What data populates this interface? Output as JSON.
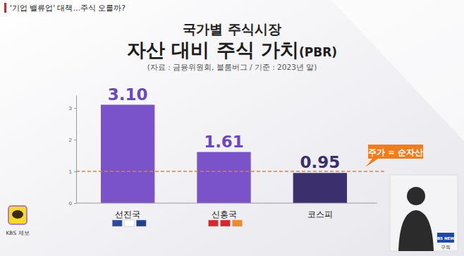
{
  "banner": "'기업 밸류업' 대책…주식 오를까?",
  "kakao_label": "KBS 제보",
  "channel": "KBS NEWS",
  "subscribe": "구독",
  "chart_data": {
    "type": "bar",
    "supertitle": "국가별 주식시장",
    "title": "자산 대비 주식 가치(PBR)",
    "subtitle": "(자료 : 금융위원회, 블룸버그 / 기준 : 2023년 말)",
    "categories": [
      "선진국",
      "신흥국",
      "코스피"
    ],
    "values": [
      3.1,
      1.61,
      0.95
    ],
    "value_labels": [
      "3.10",
      "1.61",
      "0.95"
    ],
    "colors": [
      "#7a52c9",
      "#7a52c9",
      "#3b2f6e"
    ],
    "ylim": [
      0,
      3.4
    ],
    "yticks": [
      0,
      1,
      2,
      3
    ],
    "grid": false,
    "data_labels": true,
    "annotations": [
      {
        "y": 1,
        "text": "주가 = 순자산",
        "color": "#f07c1c",
        "line_style": "dashed"
      }
    ]
  }
}
